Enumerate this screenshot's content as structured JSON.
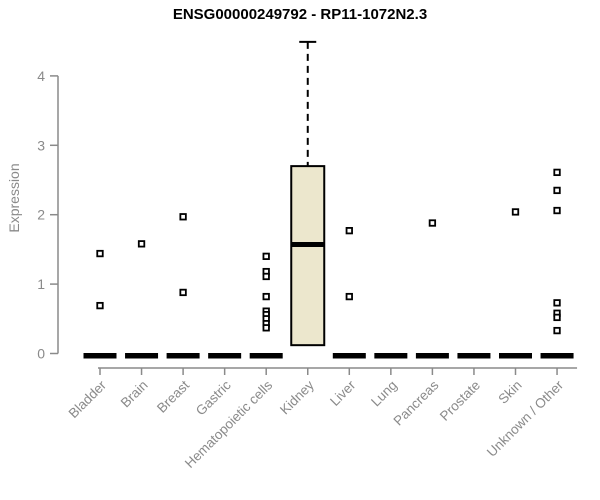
{
  "title": "ENSG00000249792 - RP11-1072N2.3",
  "chart_data": {
    "type": "boxplot",
    "title": "ENSG00000249792 - RP11-1072N2.3",
    "xlabel": "",
    "ylabel": "Expression",
    "ylim": [
      0,
      4.6
    ],
    "yticks": [
      0,
      1,
      2,
      3,
      4
    ],
    "grid": false,
    "legend": null,
    "categories": [
      "Bladder",
      "Brain",
      "Breast",
      "Gastric",
      "Hematopoietic cells",
      "Kidney",
      "Liver",
      "Lung",
      "Pancreas",
      "Prostate",
      "Skin",
      "Unknown / Other"
    ],
    "series": [
      {
        "category": "Bladder",
        "box": {
          "whisker_low": 0,
          "q1": 0,
          "median": 0,
          "q3": 0,
          "whisker_high": 0
        },
        "points": [
          1.44,
          0.69
        ]
      },
      {
        "category": "Brain",
        "box": {
          "whisker_low": 0,
          "q1": 0,
          "median": 0,
          "q3": 0,
          "whisker_high": 0
        },
        "points": [
          1.58
        ]
      },
      {
        "category": "Breast",
        "box": {
          "whisker_low": 0,
          "q1": 0,
          "median": 0,
          "q3": 0,
          "whisker_high": 0
        },
        "points": [
          1.97,
          0.88
        ]
      },
      {
        "category": "Gastric",
        "box": {
          "whisker_low": 0,
          "q1": 0,
          "median": 0,
          "q3": 0,
          "whisker_high": 0
        },
        "points": []
      },
      {
        "category": "Hematopoietic cells",
        "box": {
          "whisker_low": 0,
          "q1": 0,
          "median": 0,
          "q3": 0,
          "whisker_high": 0
        },
        "points": [
          1.4,
          1.18,
          1.11,
          0.82,
          0.61,
          0.56,
          0.5,
          0.43,
          0.37
        ]
      },
      {
        "category": "Kidney",
        "box": {
          "whisker_low": 0.12,
          "q1": 0.12,
          "median": 1.57,
          "q3": 2.7,
          "whisker_high": 4.49
        },
        "points": []
      },
      {
        "category": "Liver",
        "box": {
          "whisker_low": 0,
          "q1": 0,
          "median": 0,
          "q3": 0,
          "whisker_high": 0
        },
        "points": [
          1.77,
          0.82
        ]
      },
      {
        "category": "Lung",
        "box": {
          "whisker_low": 0,
          "q1": 0,
          "median": 0,
          "q3": 0,
          "whisker_high": 0
        },
        "points": []
      },
      {
        "category": "Pancreas",
        "box": {
          "whisker_low": 0,
          "q1": 0,
          "median": 0,
          "q3": 0,
          "whisker_high": 0
        },
        "points": [
          1.88
        ]
      },
      {
        "category": "Prostate",
        "box": {
          "whisker_low": 0,
          "q1": 0,
          "median": 0,
          "q3": 0,
          "whisker_high": 0
        },
        "points": []
      },
      {
        "category": "Skin",
        "box": {
          "whisker_low": 0,
          "q1": 0,
          "median": 0,
          "q3": 0,
          "whisker_high": 0
        },
        "points": [
          2.04
        ]
      },
      {
        "category": "Unknown / Other",
        "box": {
          "whisker_low": 0,
          "q1": 0,
          "median": 0,
          "q3": 0,
          "whisker_high": 0
        },
        "points": [
          2.61,
          2.35,
          2.06,
          0.73,
          0.58,
          0.52,
          0.33
        ]
      }
    ],
    "colors": {
      "background": "#FFFFFF",
      "box_fill": "#ECE7CD",
      "box_stroke": "#000000",
      "median": "#000000",
      "whisker": "#000000",
      "point_stroke": "#000000",
      "point_fill": "#FFFFFF",
      "axis": "#8A8A8A",
      "tick_text": "#8A8A8A",
      "title_text": "#000000"
    }
  }
}
